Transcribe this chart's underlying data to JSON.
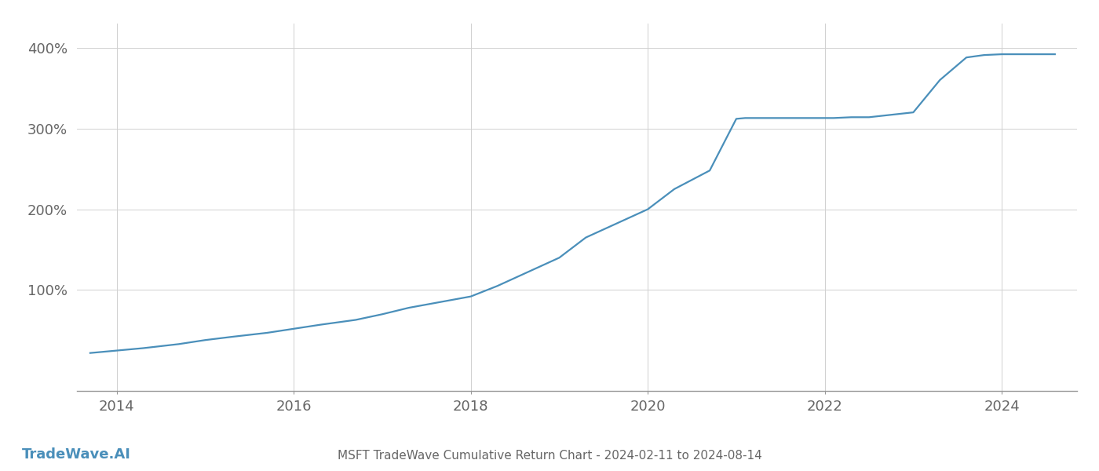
{
  "title": "MSFT TradeWave Cumulative Return Chart - 2024-02-11 to 2024-08-14",
  "watermark": "TradeWave.AI",
  "line_color": "#4a8fba",
  "background_color": "#ffffff",
  "grid_color": "#d0d0d0",
  "title_color": "#666666",
  "tick_color": "#666666",
  "watermark_color": "#4a8fba",
  "xlim_start": 2013.55,
  "xlim_end": 2024.85,
  "ylim_min": -25,
  "ylim_max": 430,
  "yticks": [
    100,
    200,
    300,
    400
  ],
  "xticks": [
    2014,
    2016,
    2018,
    2020,
    2022,
    2024
  ],
  "data_x": [
    2013.7,
    2014.0,
    2014.3,
    2014.7,
    2015.0,
    2015.3,
    2015.7,
    2016.0,
    2016.3,
    2016.7,
    2017.0,
    2017.3,
    2017.7,
    2018.0,
    2018.3,
    2018.7,
    2019.0,
    2019.3,
    2019.7,
    2020.0,
    2020.3,
    2020.7,
    2021.0,
    2021.1,
    2021.3,
    2021.5,
    2022.0,
    2022.1,
    2022.3,
    2022.5,
    2023.0,
    2023.3,
    2023.6,
    2023.8,
    2024.0,
    2024.3,
    2024.6
  ],
  "data_y": [
    22,
    25,
    28,
    33,
    38,
    42,
    47,
    52,
    57,
    63,
    70,
    78,
    86,
    92,
    105,
    125,
    140,
    165,
    185,
    200,
    225,
    248,
    312,
    313,
    313,
    313,
    313,
    313,
    314,
    314,
    320,
    360,
    388,
    391,
    392,
    392,
    392
  ],
  "line_width": 1.6,
  "title_fontsize": 11,
  "tick_fontsize": 13,
  "watermark_fontsize": 13
}
